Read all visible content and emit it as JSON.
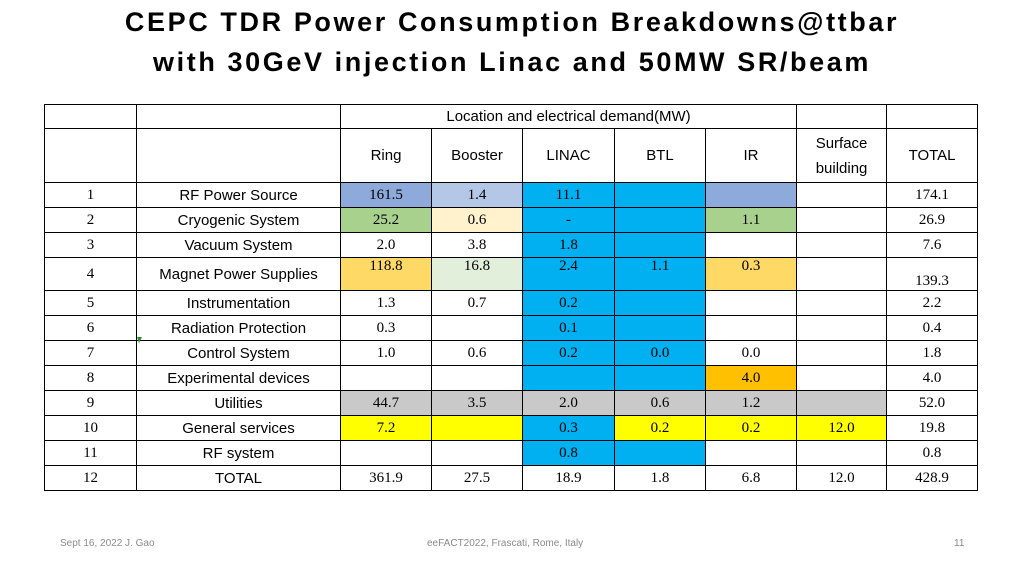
{
  "title": {
    "line1": "CEPC TDR Power Consumption Breakdowns@ttbar",
    "line2": "with 30GeV injection Linac and 50MW SR/beam"
  },
  "table": {
    "group_header": "Location and electrical demand(MW)",
    "columns": [
      "Ring",
      "Booster",
      "LINAC",
      "BTL",
      "IR",
      "Surface building",
      "TOTAL"
    ],
    "rows": [
      {
        "idx": "1",
        "label": "RF Power Source",
        "cells": [
          "161.5",
          "1.4",
          "11.1",
          "",
          "",
          "",
          "174.1"
        ]
      },
      {
        "idx": "2",
        "label": "Cryogenic System",
        "cells": [
          "25.2",
          "0.6",
          "-",
          "",
          "1.1",
          "",
          "26.9"
        ]
      },
      {
        "idx": "3",
        "label": "Vacuum System",
        "cells": [
          "2.0",
          "3.8",
          "1.8",
          "",
          "",
          "",
          "7.6"
        ]
      },
      {
        "idx": "4",
        "label": "Magnet Power Supplies",
        "cells": [
          "118.8",
          "16.8",
          "2.4",
          "1.1",
          "0.3",
          "",
          "139.3"
        ]
      },
      {
        "idx": "5",
        "label": "Instrumentation",
        "cells": [
          "1.3",
          "0.7",
          "0.2",
          "",
          "",
          "",
          "2.2"
        ]
      },
      {
        "idx": "6",
        "label": "Radiation Protection",
        "cells": [
          "0.3",
          "",
          "0.1",
          "",
          "",
          "",
          "0.4"
        ]
      },
      {
        "idx": "7",
        "label": "Control System",
        "cells": [
          "1.0",
          "0.6",
          "0.2",
          "0.0",
          "0.0",
          "",
          "1.8"
        ]
      },
      {
        "idx": "8",
        "label": "Experimental devices",
        "cells": [
          "",
          "",
          "",
          "",
          "4.0",
          "",
          "4.0"
        ]
      },
      {
        "idx": "9",
        "label": "Utilities",
        "cells": [
          "44.7",
          "3.5",
          "2.0",
          "0.6",
          "1.2",
          "",
          "52.0"
        ]
      },
      {
        "idx": "10",
        "label": "General services",
        "cells": [
          "7.2",
          "",
          "0.3",
          "0.2",
          "0.2",
          "12.0",
          "19.8"
        ]
      },
      {
        "idx": "11",
        "label": "RF system",
        "cells": [
          "",
          "",
          "0.8",
          "",
          "",
          "",
          "0.8"
        ]
      },
      {
        "idx": "12",
        "label": "TOTAL",
        "cells": [
          "361.9",
          "27.5",
          "18.9",
          "1.8",
          "6.8",
          "12.0",
          "428.9"
        ]
      }
    ],
    "cell_colors": [
      [
        "#8eaadb",
        "#b4c7e7",
        "#00b0f0",
        "#00b0f0",
        "#8eaadb",
        "",
        ""
      ],
      [
        "#a9d18e",
        "#fff2cc",
        "#00b0f0",
        "#00b0f0",
        "#a9d18e",
        "",
        ""
      ],
      [
        "",
        "",
        "#00b0f0",
        "#00b0f0",
        "",
        "",
        ""
      ],
      [
        "#ffd966",
        "#e2efda",
        "#00b0f0",
        "#00b0f0",
        "#ffd966",
        "",
        ""
      ],
      [
        "",
        "",
        "#00b0f0",
        "#00b0f0",
        "",
        "",
        ""
      ],
      [
        "",
        "",
        "#00b0f0",
        "#00b0f0",
        "",
        "",
        ""
      ],
      [
        "",
        "",
        "#00b0f0",
        "#00b0f0",
        "",
        "",
        ""
      ],
      [
        "",
        "",
        "#00b0f0",
        "#00b0f0",
        "#ffc000",
        "",
        ""
      ],
      [
        "#c9c9c9",
        "#c9c9c9",
        "#c9c9c9",
        "#c9c9c9",
        "#c9c9c9",
        "#c9c9c9",
        ""
      ],
      [
        "#ffff00",
        "#ffff00",
        "#00b0f0",
        "#ffff00",
        "#ffff00",
        "#ffff00",
        ""
      ],
      [
        "",
        "",
        "#00b0f0",
        "#00b0f0",
        "",
        "",
        ""
      ],
      [
        "",
        "",
        "",
        "",
        "",
        "",
        ""
      ]
    ]
  },
  "footer": {
    "left": "Sept 16, 2022 J. Gao",
    "center": "eeFACT2022, Frascati, Rome, Italy",
    "page": "11"
  }
}
